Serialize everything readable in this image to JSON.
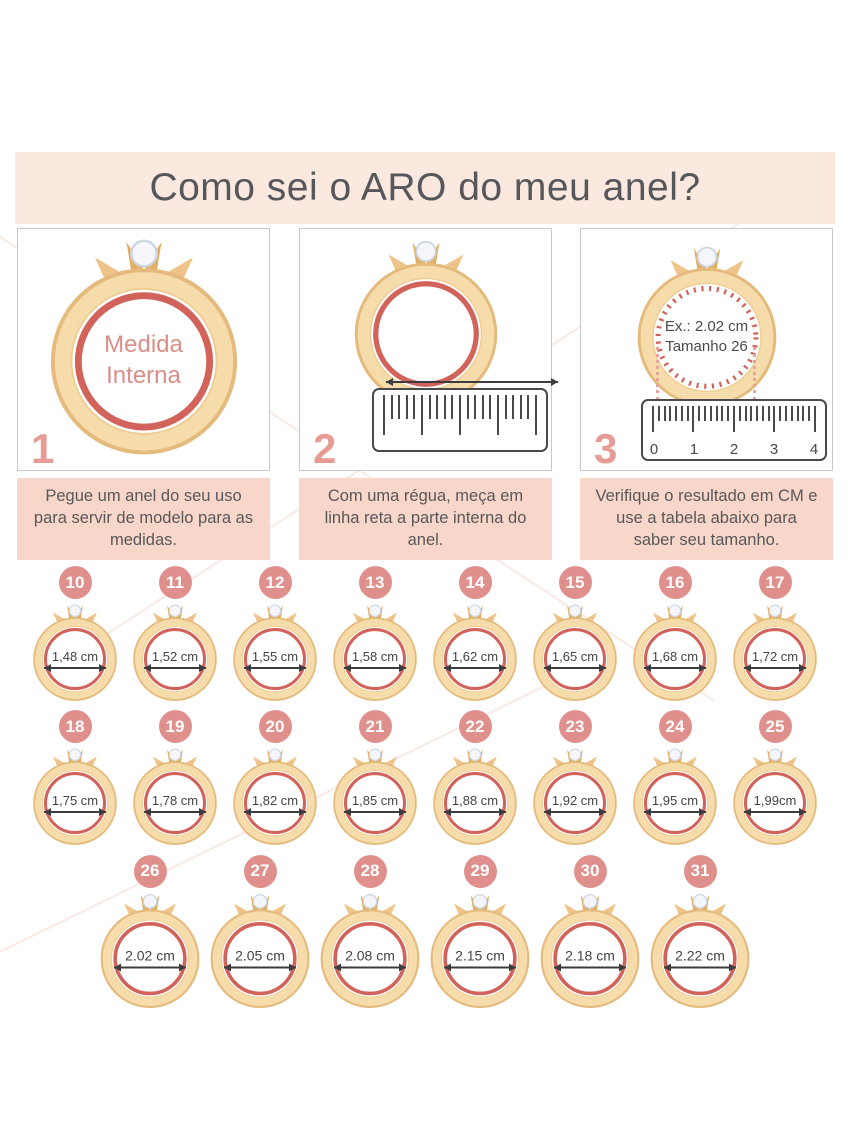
{
  "title": "Como sei o ARO do meu anel?",
  "steps": [
    {
      "number": "1",
      "ring_text_line1": "Medida",
      "ring_text_line2": "Interna",
      "caption": "Pegue um anel do seu uso para servir de modelo para as medidas."
    },
    {
      "number": "2",
      "caption": "Com uma régua, meça em linha reta a parte interna do anel."
    },
    {
      "number": "3",
      "ring_text_line1": "Ex.: 2.02 cm",
      "ring_text_line2": "Tamanho 26",
      "ruler_numbers": [
        "0",
        "1",
        "2",
        "3",
        "4"
      ],
      "caption": "Verifique o resultado em CM e use a tabela abaixo para saber seu tamanho."
    }
  ],
  "size_table": {
    "rows": [
      [
        {
          "size": "10",
          "measure": "1,48 cm"
        },
        {
          "size": "11",
          "measure": "1,52 cm"
        },
        {
          "size": "12",
          "measure": "1,55 cm"
        },
        {
          "size": "13",
          "measure": "1,58 cm"
        },
        {
          "size": "14",
          "measure": "1,62 cm"
        },
        {
          "size": "15",
          "measure": "1,65 cm"
        },
        {
          "size": "16",
          "measure": "1,68 cm"
        },
        {
          "size": "17",
          "measure": "1,72 cm"
        }
      ],
      [
        {
          "size": "18",
          "measure": "1,75 cm"
        },
        {
          "size": "19",
          "measure": "1,78 cm"
        },
        {
          "size": "20",
          "measure": "1,82 cm"
        },
        {
          "size": "21",
          "measure": "1,85 cm"
        },
        {
          "size": "22",
          "measure": "1,88 cm"
        },
        {
          "size": "23",
          "measure": "1,92 cm"
        },
        {
          "size": "24",
          "measure": "1,95 cm"
        },
        {
          "size": "25",
          "measure": "1,99cm"
        }
      ],
      [
        {
          "size": "26",
          "measure": "2.02 cm"
        },
        {
          "size": "27",
          "measure": "2.05 cm"
        },
        {
          "size": "28",
          "measure": "2.08 cm"
        },
        {
          "size": "29",
          "measure": "2.15 cm"
        },
        {
          "size": "30",
          "measure": "2.18 cm"
        },
        {
          "size": "31",
          "measure": "2.22 cm"
        }
      ]
    ]
  },
  "icons": {
    "ring": "ring-illustration",
    "diameter_arrow": "double-headed-arrow",
    "ruler": "ruler"
  },
  "colors": {
    "banner_bg": "#fbe9e0",
    "caption_bg": "#f8d6c9",
    "badge": "#df908c",
    "step_number": "#e69c95",
    "ring_band": "#f7dcab",
    "ring_band_edge": "#e4ba7d",
    "ring_inner_stroke": "#d2635b",
    "accent_text": "#da8e88",
    "body_text": "#58585a"
  }
}
